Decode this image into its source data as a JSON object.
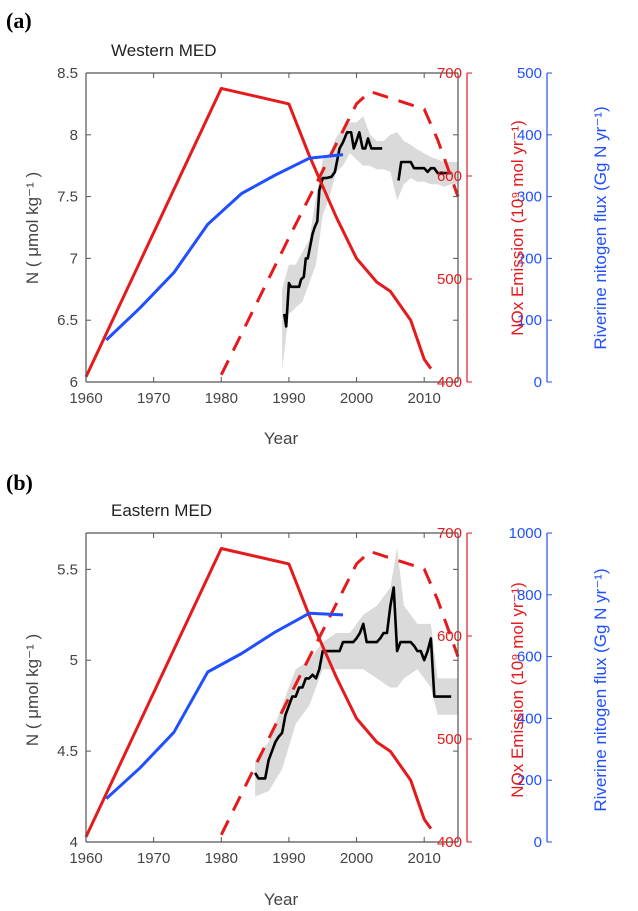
{
  "colors": {
    "nox": "#e41a1c",
    "riverine": "#1f4fff",
    "nitrate": "#000000",
    "band": "#d3d3d3",
    "axis": "#555555"
  },
  "chart_data": [
    {
      "type": "line",
      "panel_label": "(a)",
      "title": "Western MED",
      "xlabel": "Year",
      "ylabel_left": "N ( μmol kg⁻¹ )",
      "ylabel_right1": "NOx Emission (10⁹ mol yr⁻¹)",
      "ylabel_right2": "Riverine nitogen flux (Gg N yr⁻¹)",
      "xlim": [
        1960,
        2015
      ],
      "ylim_left": [
        6,
        8.5
      ],
      "ylim_right1": [
        400,
        700
      ],
      "ylim_right2": [
        0,
        500
      ],
      "xticks": [
        1960,
        1970,
        1980,
        1990,
        2000,
        2010
      ],
      "yticks_left": [
        6,
        6.5,
        7,
        7.5,
        8,
        8.5
      ],
      "yticks_right1": [
        400,
        500,
        600,
        700
      ],
      "yticks_right2": [
        0,
        100,
        200,
        300,
        400,
        500
      ],
      "series": [
        {
          "axis": "left",
          "color_key": "nitrate",
          "style": "solid",
          "x": [
            1989.3,
            1989.6,
            1990.0,
            1990.3,
            1991.5,
            1991.8,
            1992.2,
            1992.5,
            1992.8,
            1993.5,
            1993.8,
            1994.2,
            1994.5,
            1995.0,
            1995.5,
            1996.3,
            1996.8,
            1997.5,
            1998.0,
            1998.6,
            1999.2,
            1999.6,
            2000.0,
            2000.4,
            2000.9,
            2001.3,
            2001.7,
            2002.2,
            2002.6,
            2003.0,
            2003.8
          ],
          "y": [
            6.55,
            6.45,
            6.8,
            6.77,
            6.77,
            6.83,
            6.85,
            7.0,
            7.0,
            7.2,
            7.25,
            7.3,
            7.55,
            7.65,
            7.65,
            7.66,
            7.7,
            7.89,
            7.94,
            8.02,
            8.02,
            7.89,
            7.95,
            8.02,
            7.89,
            7.89,
            7.97,
            7.89,
            7.89,
            7.89,
            7.89
          ]
        },
        {
          "axis": "left",
          "color_key": "nitrate",
          "style": "solid",
          "x": [
            2006.2,
            2006.6,
            2007.0,
            2007.5,
            2008.0,
            2008.5,
            2009.0,
            2009.5,
            2010.0,
            2010.5,
            2011.0,
            2011.5,
            2012.0,
            2012.5,
            2013.0,
            2014.0
          ],
          "y": [
            7.63,
            7.78,
            7.78,
            7.78,
            7.78,
            7.73,
            7.73,
            7.73,
            7.73,
            7.7,
            7.73,
            7.73,
            7.69,
            7.69,
            7.69,
            7.69
          ]
        },
        {
          "axis": "right1",
          "color_key": "nox",
          "style": "solid",
          "x": [
            1960,
            1980,
            1990,
            1993,
            1995,
            1997,
            2000,
            2003,
            2005,
            2008,
            2010,
            2011
          ],
          "y": [
            405,
            685,
            670,
            620,
            590,
            560,
            520,
            497,
            488,
            460,
            422,
            413
          ]
        },
        {
          "axis": "right1",
          "color_key": "nox",
          "style": "dashed",
          "x": [
            1980,
            1990,
            2000,
            2002,
            2010,
            2012,
            2015
          ],
          "y": [
            407,
            540,
            670,
            682,
            665,
            635,
            580
          ]
        },
        {
          "axis": "right2",
          "color_key": "riverine",
          "style": "solid",
          "x": [
            1963,
            1968,
            1973,
            1978,
            1983,
            1988,
            1993,
            1998
          ],
          "y": [
            68,
            120,
            177,
            255,
            305,
            335,
            362,
            368
          ]
        }
      ],
      "bands": [
        {
          "x": [
            1989,
            1990,
            1991,
            1992,
            1993,
            1994,
            1995,
            1996,
            1997,
            1998,
            1999,
            2000,
            2001,
            2002,
            2003,
            2004
          ],
          "lo": [
            6.1,
            6.55,
            6.6,
            6.65,
            6.8,
            6.95,
            7.35,
            7.5,
            7.7,
            7.75,
            7.85,
            7.8,
            7.75,
            7.75,
            7.72,
            7.72
          ],
          "hi": [
            6.75,
            6.95,
            6.95,
            7.05,
            7.15,
            7.5,
            7.8,
            7.85,
            7.98,
            8.05,
            8.1,
            8.1,
            8.15,
            8.0,
            7.95,
            7.95
          ]
        },
        {
          "x": [
            2004,
            2005,
            2006,
            2007,
            2008,
            2009,
            2010,
            2011,
            2012,
            2013,
            2014,
            2015
          ],
          "lo": [
            7.72,
            7.7,
            7.47,
            7.6,
            7.65,
            7.62,
            7.62,
            7.6,
            7.6,
            7.58,
            7.6,
            7.6
          ],
          "hi": [
            7.95,
            8.0,
            8.02,
            7.95,
            7.92,
            7.88,
            7.85,
            7.82,
            7.8,
            7.78,
            7.78,
            7.78
          ]
        }
      ]
    },
    {
      "type": "line",
      "panel_label": "(b)",
      "title": "Eastern MED",
      "xlabel": "Year",
      "ylabel_left": "N ( μmol kg⁻¹ )",
      "ylabel_right1": "NOx Emission (10⁹ mol yr⁻¹)",
      "ylabel_right2": "Riverine nitogen flux (Gg N yr⁻¹)",
      "xlim": [
        1960,
        2015
      ],
      "ylim_left": [
        4,
        5.7
      ],
      "ylim_right1": [
        400,
        700
      ],
      "ylim_right2": [
        0,
        1000
      ],
      "xticks": [
        1960,
        1970,
        1980,
        1990,
        2000,
        2010
      ],
      "yticks_left": [
        4,
        4.5,
        5,
        5.5
      ],
      "yticks_right1": [
        400,
        500,
        600,
        700
      ],
      "yticks_right2": [
        0,
        200,
        400,
        600,
        800,
        1000
      ],
      "series": [
        {
          "axis": "left",
          "color_key": "nitrate",
          "style": "solid",
          "x": [
            1985.0,
            1985.5,
            1986.5,
            1987.0,
            1987.5,
            1988.0,
            1988.5,
            1989.0,
            1989.5,
            1990.0,
            1990.5,
            1991.0,
            1991.5,
            1992.0,
            1992.5,
            1993.0,
            1993.5,
            1994.0,
            1994.5,
            1995.0,
            1996.0,
            1996.5,
            1997.0,
            1997.5,
            1998.0,
            1998.5,
            1999.0,
            1999.5,
            2000.0,
            2000.5,
            2001.0,
            2001.5,
            2002.0,
            2003.0,
            2003.5,
            2004.0,
            2004.5,
            2005.0,
            2005.5,
            2006.0,
            2006.5,
            2007.0,
            2007.5,
            2008.0,
            2008.5,
            2009.0,
            2009.5,
            2010.0,
            2010.5,
            2011.0,
            2011.5,
            2012.0,
            2013.0,
            2014.0
          ],
          "y": [
            4.38,
            4.35,
            4.35,
            4.45,
            4.5,
            4.55,
            4.58,
            4.6,
            4.7,
            4.75,
            4.8,
            4.8,
            4.85,
            4.85,
            4.9,
            4.9,
            4.92,
            4.9,
            4.95,
            5.05,
            5.05,
            5.05,
            5.05,
            5.05,
            5.1,
            5.1,
            5.1,
            5.1,
            5.12,
            5.15,
            5.2,
            5.1,
            5.1,
            5.1,
            5.12,
            5.15,
            5.15,
            5.3,
            5.4,
            5.05,
            5.1,
            5.1,
            5.1,
            5.1,
            5.08,
            5.05,
            5.05,
            5.0,
            5.05,
            5.12,
            4.8,
            4.8,
            4.8,
            4.8
          ]
        },
        {
          "axis": "right1",
          "color_key": "nox",
          "style": "solid",
          "x": [
            1960,
            1980,
            1990,
            1993,
            1995,
            1997,
            2000,
            2003,
            2005,
            2008,
            2010,
            2011
          ],
          "y": [
            405,
            685,
            670,
            620,
            590,
            560,
            520,
            497,
            488,
            460,
            422,
            413
          ]
        },
        {
          "axis": "right1",
          "color_key": "nox",
          "style": "dashed",
          "x": [
            1980,
            1990,
            2000,
            2002,
            2010,
            2012,
            2015
          ],
          "y": [
            407,
            540,
            670,
            682,
            665,
            635,
            580
          ]
        },
        {
          "axis": "right2",
          "color_key": "riverine",
          "style": "solid",
          "x": [
            1963,
            1968,
            1973,
            1978,
            1983,
            1988,
            1993,
            1998
          ],
          "y": [
            140,
            240,
            355,
            550,
            610,
            680,
            740,
            735
          ]
        }
      ],
      "bands": [
        {
          "x": [
            1985,
            1987,
            1989,
            1991,
            1993,
            1995,
            1997,
            1999,
            2001,
            2003,
            2005,
            2006,
            2007,
            2009,
            2011,
            2012,
            2015
          ],
          "lo": [
            4.25,
            4.28,
            4.4,
            4.65,
            4.75,
            4.95,
            4.95,
            4.95,
            4.95,
            4.9,
            4.85,
            4.85,
            4.9,
            4.95,
            4.85,
            4.7,
            4.7
          ],
          "hi": [
            4.45,
            4.55,
            4.75,
            4.95,
            5.0,
            5.1,
            5.15,
            5.15,
            5.25,
            5.3,
            5.4,
            5.62,
            5.3,
            5.2,
            5.2,
            4.9,
            4.9
          ]
        }
      ]
    }
  ]
}
